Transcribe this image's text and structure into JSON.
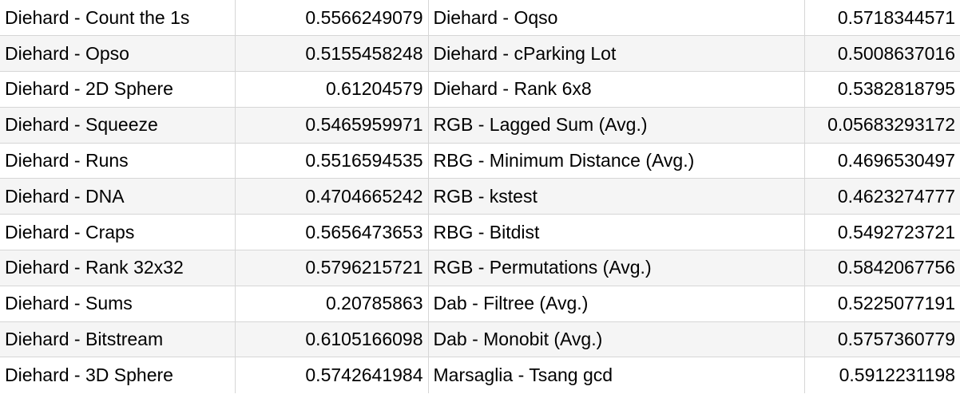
{
  "table": {
    "rows": [
      {
        "left_name": "Diehard - Count the 1s",
        "left_value": "0.5566249079",
        "right_name": "Diehard - Oqso",
        "right_value": "0.5718344571"
      },
      {
        "left_name": "Diehard - Opso",
        "left_value": "0.5155458248",
        "right_name": "Diehard - cParking Lot",
        "right_value": "0.5008637016"
      },
      {
        "left_name": "Diehard - 2D Sphere",
        "left_value": "0.61204579",
        "right_name": "Diehard - Rank 6x8",
        "right_value": "0.5382818795"
      },
      {
        "left_name": "Diehard - Squeeze",
        "left_value": "0.5465959971",
        "right_name": "RGB - Lagged Sum (Avg.)",
        "right_value": "0.05683293172"
      },
      {
        "left_name": "Diehard - Runs",
        "left_value": "0.5516594535",
        "right_name": "RBG - Minimum Distance (Avg.)",
        "right_value": "0.4696530497"
      },
      {
        "left_name": "Diehard - DNA",
        "left_value": "0.4704665242",
        "right_name": "RGB - kstest",
        "right_value": "0.4623274777"
      },
      {
        "left_name": "Diehard - Craps",
        "left_value": "0.5656473653",
        "right_name": "RBG - Bitdist",
        "right_value": "0.5492723721"
      },
      {
        "left_name": "Diehard - Rank 32x32",
        "left_value": "0.5796215721",
        "right_name": "RGB - Permutations (Avg.)",
        "right_value": "0.5842067756"
      },
      {
        "left_name": "Diehard - Sums",
        "left_value": "0.20785863",
        "right_name": "Dab - Filtree (Avg.)",
        "right_value": "0.5225077191"
      },
      {
        "left_name": "Diehard - Bitstream",
        "left_value": "0.6105166098",
        "right_name": "Dab - Monobit (Avg.)",
        "right_value": "0.5757360779"
      },
      {
        "left_name": "Diehard - 3D Sphere",
        "left_value": "0.5742641984",
        "right_name": "Marsaglia - Tsang gcd",
        "right_value": "0.5912231198"
      }
    ]
  }
}
